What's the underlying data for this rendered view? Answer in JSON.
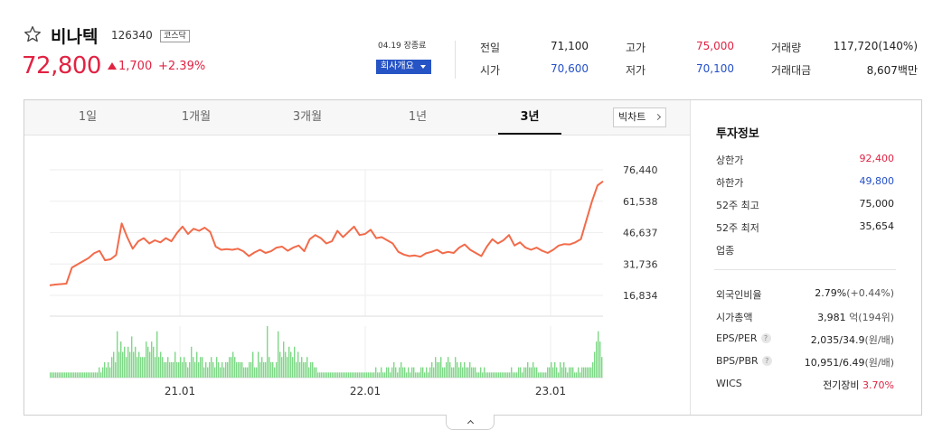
{
  "stock": {
    "name": "비나텍",
    "code": "126340",
    "market": "코스닥",
    "price": "72,800",
    "change": "1,700",
    "change_rate": "+2.39%",
    "date": "04.19 장종료",
    "corp_button": "회사개요"
  },
  "quote": {
    "prev_close_label": "전일",
    "prev_close": "71,100",
    "high_label": "고가",
    "high": "75,000",
    "volume_label": "거래량",
    "volume": "117,720(140%)",
    "open_label": "시가",
    "open": "70,600",
    "low_label": "저가",
    "low": "70,100",
    "amount_label": "거래대금",
    "amount": "8,607백만"
  },
  "tabs": [
    "1일",
    "1개월",
    "3개월",
    "1년",
    "3년"
  ],
  "active_tab": "3년",
  "big_chart_label": "빅차트",
  "colors": {
    "up": "#e12343",
    "down": "#2450c9",
    "line": "#f26b4a",
    "volume": "#7ed887",
    "accent": "#2754c5"
  },
  "chart_data": {
    "type": "line",
    "ylim": [
      16834,
      76440
    ],
    "y_ticks": [
      "76,440",
      "61,538",
      "46,637",
      "31,736",
      "16,834"
    ],
    "x_ticks": [
      "21.01",
      "22.01",
      "23.01"
    ],
    "series": [
      {
        "values": [
          21600,
          22000,
          22200,
          22400,
          30000,
          31500,
          33000,
          34500,
          36800,
          38000,
          33500,
          34000,
          36000,
          51000,
          44500,
          39000,
          42500,
          44000,
          41500,
          43000,
          42000,
          44000,
          42500,
          46500,
          49500,
          46000,
          48500,
          47500,
          49000,
          47000,
          40000,
          38500,
          38800,
          38500,
          39000,
          37800,
          35500,
          37200,
          38500,
          37000,
          37800,
          39500,
          40000,
          38000,
          39500,
          40500,
          37800,
          43500,
          45500,
          44000,
          41500,
          42500,
          47500,
          44500,
          47000,
          49500,
          45500,
          46000,
          48000,
          44000,
          44500,
          43000,
          41500,
          37500,
          36200,
          35500,
          35800,
          35200,
          36800,
          37500,
          38500,
          36800,
          37500,
          37000,
          39500,
          41000,
          38500,
          37000,
          35500,
          40000,
          43500,
          41500,
          43000,
          45500,
          40500,
          42000,
          39500,
          38500,
          39500,
          38000,
          37000,
          38500,
          40500,
          41200,
          41000,
          42000,
          43500,
          52500,
          61500,
          69000,
          71000
        ]
      }
    ],
    "volume": [
      1,
      1,
      1,
      1,
      1,
      1,
      1,
      1,
      1,
      1,
      1,
      1,
      1,
      1,
      1,
      1,
      1,
      1,
      1,
      1,
      1,
      1,
      1,
      1,
      1,
      1,
      1,
      2,
      1,
      2,
      3,
      2,
      3,
      2,
      4,
      5,
      3,
      9,
      5,
      7,
      5,
      6,
      4,
      6,
      5,
      8,
      5,
      6,
      4,
      5,
      4,
      4,
      4,
      7,
      6,
      5,
      7,
      6,
      4,
      9,
      4,
      5,
      4,
      3,
      3,
      4,
      3,
      3,
      3,
      5,
      3,
      3,
      4,
      3,
      4,
      3,
      2,
      3,
      6,
      4,
      3,
      5,
      3,
      4,
      4,
      2,
      3,
      2,
      3,
      4,
      3,
      2,
      4,
      3,
      2,
      3,
      2,
      3,
      3,
      4,
      4,
      5,
      4,
      3,
      3,
      3,
      3,
      2,
      2,
      2,
      3,
      3,
      5,
      2,
      2,
      5,
      3,
      4,
      3,
      3,
      10,
      4,
      3,
      3,
      2,
      3,
      9,
      5,
      4,
      7,
      5,
      4,
      6,
      5,
      4,
      6,
      3,
      5,
      3,
      4,
      3,
      3,
      4,
      2,
      3,
      3,
      2,
      2,
      1,
      1,
      1,
      1,
      1,
      1,
      1,
      1,
      1,
      1,
      1,
      1,
      1,
      1,
      1,
      1,
      1,
      1,
      1,
      1,
      1,
      1,
      1,
      1,
      1,
      1,
      1,
      1,
      1,
      1,
      1,
      1,
      2,
      1,
      1,
      2,
      1,
      1,
      2,
      2,
      1,
      2,
      3,
      2,
      1,
      2,
      3,
      2,
      2,
      1,
      2,
      1,
      2,
      2,
      1,
      1,
      1,
      2,
      2,
      1,
      2,
      1,
      2,
      3,
      2,
      4,
      3,
      3,
      4,
      2,
      2,
      3,
      4,
      3,
      2,
      2,
      4,
      3,
      2,
      3,
      2,
      3,
      2,
      2,
      3,
      2,
      2,
      2,
      1,
      1,
      2,
      1,
      2,
      1,
      1,
      1,
      1,
      1,
      1,
      1,
      1,
      1,
      1,
      1,
      1,
      1,
      1,
      2,
      1,
      1,
      1,
      2,
      2,
      1,
      2,
      2,
      3,
      2,
      2,
      3,
      2,
      2,
      1,
      1,
      1,
      1,
      1,
      2,
      2,
      3,
      2,
      3,
      2,
      1,
      3,
      2,
      3,
      2,
      1,
      2,
      2,
      2,
      1,
      1,
      2,
      1,
      2,
      2,
      2,
      2,
      2,
      2,
      3,
      5,
      7,
      9,
      7,
      4
    ]
  },
  "invest": {
    "title": "투자정보",
    "rows_top": [
      {
        "label": "상한가",
        "value": "92,400",
        "tone": "up"
      },
      {
        "label": "하한가",
        "value": "49,800",
        "tone": "down"
      },
      {
        "label": "52주 최고",
        "value": "75,000",
        "tone": "neu"
      },
      {
        "label": "52주 최저",
        "value": "35,654",
        "tone": "neu"
      },
      {
        "label": "업종",
        "value": "",
        "tone": "neu"
      }
    ],
    "foreign_label": "외국인비율",
    "foreign_value": "2.79%",
    "foreign_sub": "(+0.44%)",
    "mcap_label": "시가총액",
    "mcap_value": "3,981",
    "mcap_sub": "억(194위)",
    "eps_label": "EPS/PER",
    "eps_value": "2,035/34.9",
    "eps_sub": "(원/배)",
    "bps_label": "BPS/PBR",
    "bps_value": "10,951/6.49",
    "bps_sub": "(원/배)",
    "wics_label": "WICS",
    "wics_value": "전기장비",
    "wics_rate": "3.70%",
    "help": "?"
  }
}
